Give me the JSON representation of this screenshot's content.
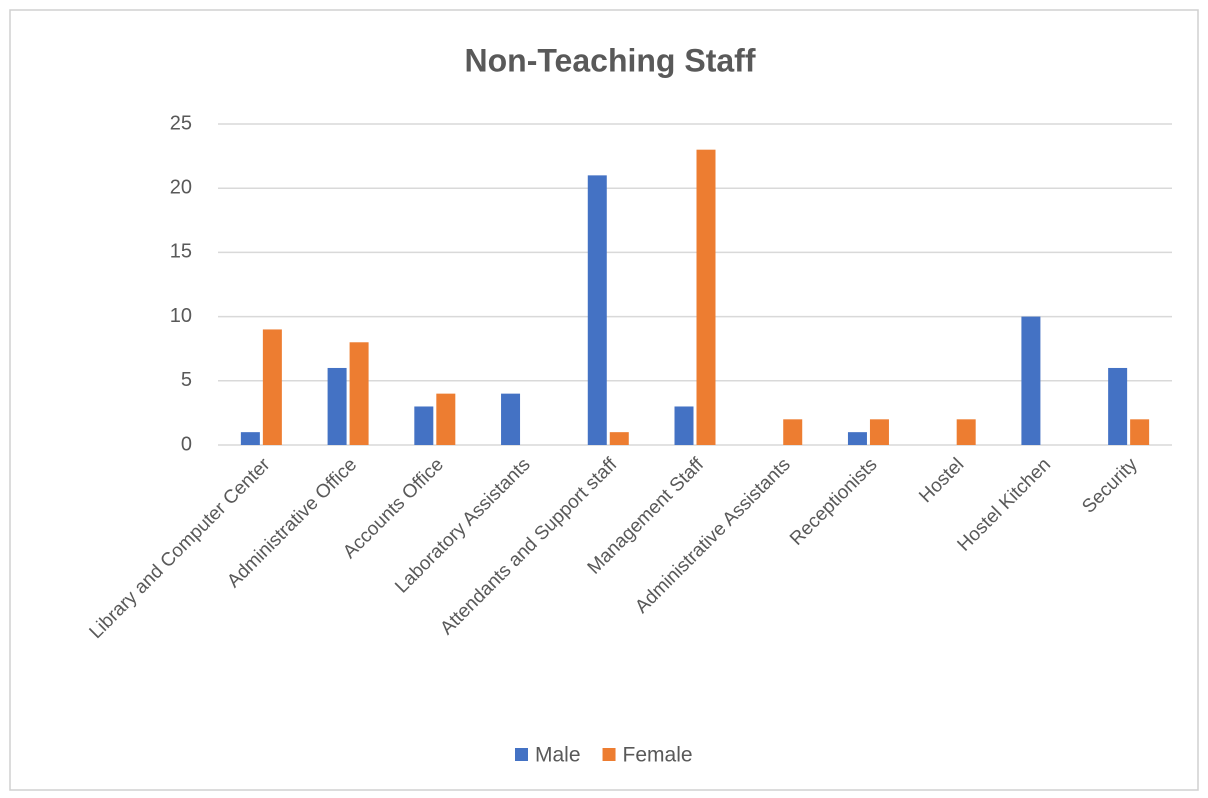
{
  "chart_data": {
    "type": "bar",
    "title": "Non-Teaching Staff",
    "categories": [
      "Library and Computer Center",
      "Administrative Office",
      "Accounts Office",
      "Laboratory Assistants",
      "Attendants and Support staff",
      "Management Staff",
      "Administrative Assistants",
      "Receptionists",
      "Hostel",
      "Hostel Kitchen",
      "Security"
    ],
    "series": [
      {
        "name": "Male",
        "color": "#4472c4",
        "values": [
          1,
          6,
          3,
          4,
          21,
          3,
          0,
          1,
          0,
          10,
          6
        ]
      },
      {
        "name": "Female",
        "color": "#ed7d31",
        "values": [
          9,
          8,
          4,
          0,
          1,
          23,
          2,
          2,
          2,
          0,
          2
        ]
      }
    ],
    "ylim": [
      0,
      25
    ],
    "yticks": [
      0,
      5,
      10,
      15,
      20,
      25
    ],
    "grid": true,
    "legend": "bottom"
  }
}
